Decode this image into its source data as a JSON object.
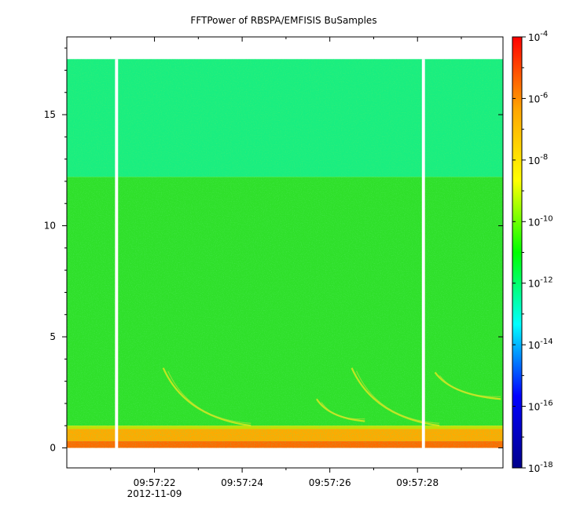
{
  "chart_data": {
    "type": "heatmap",
    "title": "FFTPower of RBSPA/EMFISIS  BuSamples",
    "xlabel": "",
    "ylabel": "",
    "x_ticks": [
      {
        "value": 22,
        "label": "09:57:22"
      },
      {
        "value": 24,
        "label": "09:57:24"
      },
      {
        "value": 26,
        "label": "09:57:26"
      },
      {
        "value": 28,
        "label": "09:57:28"
      }
    ],
    "x_minor_ticks": [
      21,
      23,
      25,
      27,
      29
    ],
    "x_date_label": "2012-11-09",
    "xlim": [
      20.0,
      29.95
    ],
    "y_ticks": [
      0,
      5,
      10,
      15
    ],
    "ylim": [
      -0.9,
      18.5
    ],
    "data_extent": {
      "x": [
        20.0,
        29.95
      ],
      "y": [
        0,
        17.5
      ]
    },
    "gaps": [
      {
        "x_start": 21.1,
        "x_end": 21.17
      },
      {
        "x_start": 28.1,
        "x_end": 28.17
      }
    ],
    "colorbar": {
      "scale": "log",
      "range": [
        1e-18,
        0.0001
      ],
      "ticks": [
        {
          "value": 0.0001,
          "base": "10",
          "exp": "-4"
        },
        {
          "value": 1e-06,
          "base": "10",
          "exp": "-6"
        },
        {
          "value": 1e-08,
          "base": "10",
          "exp": "-8"
        },
        {
          "value": 1e-10,
          "base": "10",
          "exp": "-10"
        },
        {
          "value": 1e-12,
          "base": "10",
          "exp": "-12"
        },
        {
          "value": 1e-14,
          "base": "10",
          "exp": "-14"
        },
        {
          "value": 1e-16,
          "base": "10",
          "exp": "-16"
        },
        {
          "value": 1e-18,
          "base": "10",
          "exp": "-18"
        }
      ],
      "colormap": [
        "#00008b",
        "#0000ff",
        "#00ffff",
        "#00ff00",
        "#ffff00",
        "#ffa500",
        "#ff0000"
      ]
    },
    "bands": [
      {
        "y_from": 12.2,
        "y_to": 17.5,
        "color": "#19ee80",
        "note": "upper band"
      },
      {
        "y_from": 1.0,
        "y_to": 12.2,
        "color": "#2fe02a",
        "note": "middle band"
      },
      {
        "y_from": 0.85,
        "y_to": 1.0,
        "color": "#c8e000"
      },
      {
        "y_from": 0.3,
        "y_to": 0.85,
        "color": "#ffaa00"
      },
      {
        "y_from": 0.0,
        "y_to": 0.3,
        "color": "#ff6a00"
      }
    ],
    "features": [
      {
        "type": "chorus-arc",
        "x_start": 22.2,
        "y_start": 3.6,
        "x_end": 24.2,
        "y_end": 1.0
      },
      {
        "type": "chorus-arc",
        "x_start": 25.7,
        "y_start": 2.2,
        "x_end": 26.8,
        "y_end": 1.2
      },
      {
        "type": "chorus-arc",
        "x_start": 26.5,
        "y_start": 3.6,
        "x_end": 28.5,
        "y_end": 1.0
      },
      {
        "type": "chorus-arc",
        "x_start": 28.4,
        "y_start": 3.4,
        "x_end": 29.9,
        "y_end": 2.2
      }
    ]
  }
}
